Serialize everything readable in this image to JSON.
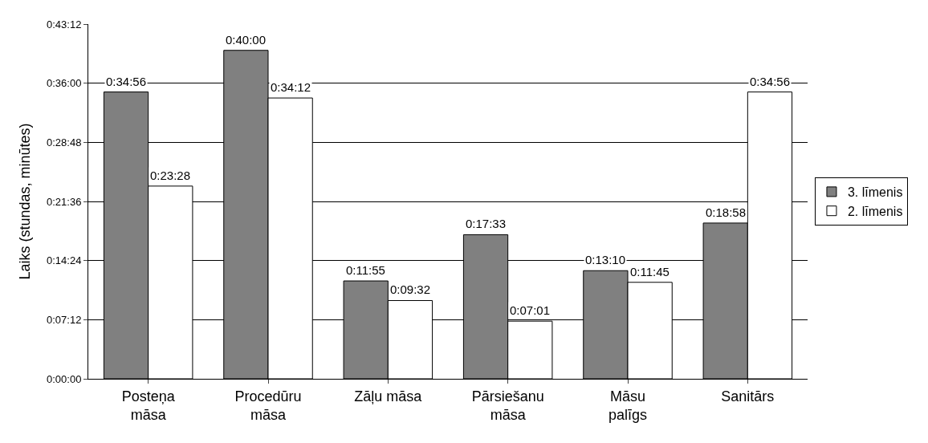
{
  "chart_data": {
    "type": "bar",
    "ylabel": "Laiks (stundas, minūtes)",
    "categories": [
      "Posteņa\nmāsa",
      "Procedūru\nmāsa",
      "Zāļu māsa",
      "Pārsiešanu\nmāsa",
      "Māsu\npalīgs",
      "Sanitārs"
    ],
    "series": [
      {
        "name": "3. līmenis",
        "color": "#808080",
        "values": [
          34.93,
          40,
          11.92,
          17.55,
          13.17,
          18.97
        ],
        "value_labels": [
          "0:34:56",
          "0:40:00",
          "0:11:55",
          "0:17:33",
          "0:13:10",
          "0:18:58"
        ]
      },
      {
        "name": "2. līmenis",
        "color": "#ffffff",
        "values": [
          23.47,
          34.2,
          9.53,
          7.02,
          11.75,
          34.93
        ],
        "value_labels": [
          "0:23:28",
          "0:34:12",
          "0:09:32",
          "0:07:01",
          "0:11:45",
          "0:34:56"
        ]
      }
    ],
    "ylim": [
      0,
      43.2
    ],
    "yticks": [
      {
        "value": 0,
        "label": "0:00:00"
      },
      {
        "value": 7.2,
        "label": "0:07:12"
      },
      {
        "value": 14.4,
        "label": "0:14:24"
      },
      {
        "value": 21.6,
        "label": "0:21:36"
      },
      {
        "value": 28.8,
        "label": "0:28:48"
      },
      {
        "value": 36,
        "label": "0:36:00"
      },
      {
        "value": 43.2,
        "label": "0:43:12"
      }
    ],
    "grid": "y",
    "legend": "right"
  }
}
